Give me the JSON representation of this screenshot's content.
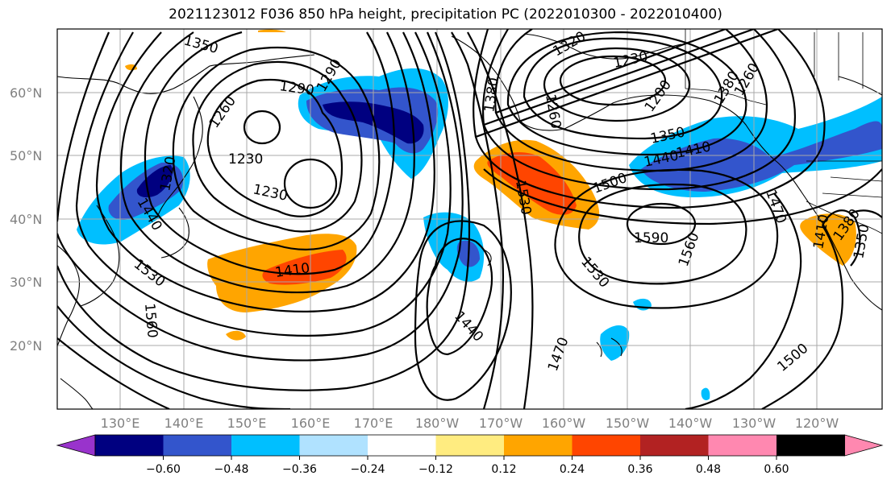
{
  "title": "2021123012 F036 850 hPa height, precipitation PC (2022010300 - 2022010400)",
  "lat_labels": [
    "60°N",
    "50°N",
    "40°N",
    "30°N",
    "20°N"
  ],
  "lon_labels": [
    "130°E",
    "140°E",
    "150°E",
    "160°E",
    "170°E",
    "180°W",
    "170°W",
    "160°W",
    "150°W",
    "140°W",
    "130°W",
    "120°W"
  ],
  "colorbar": {
    "colors": [
      "#9933cc",
      "#000080",
      "#3355cc",
      "#00bfff",
      "#b0e2ff",
      "#ffffff",
      "#ffec80",
      "#ffa500",
      "#ff4500",
      "#b22222",
      "#ff88b0"
    ],
    "tick_labels": [
      "−0.60",
      "−0.48",
      "−0.36",
      "−0.24",
      "−0.12",
      "0.12",
      "0.24",
      "0.36",
      "0.48",
      "0.60"
    ]
  },
  "contour_labels": [
    {
      "id": "c1",
      "text": "1350"
    },
    {
      "id": "c2",
      "text": "1290"
    },
    {
      "id": "c3",
      "text": "1260"
    },
    {
      "id": "c4",
      "text": "1230"
    },
    {
      "id": "c5",
      "text": "1230"
    },
    {
      "id": "c6",
      "text": "1380"
    },
    {
      "id": "c7",
      "text": "1410"
    },
    {
      "id": "c8",
      "text": "1320"
    },
    {
      "id": "c9",
      "text": "1440"
    },
    {
      "id": "c10",
      "text": "1530"
    },
    {
      "id": "c11",
      "text": "1560"
    },
    {
      "id": "c12",
      "text": "1440"
    },
    {
      "id": "c13",
      "text": "1470"
    },
    {
      "id": "c14",
      "text": "1530"
    },
    {
      "id": "c15",
      "text": "1530"
    },
    {
      "id": "c16",
      "text": "1500"
    },
    {
      "id": "c17",
      "text": "1590"
    },
    {
      "id": "c18",
      "text": "1560"
    },
    {
      "id": "c19",
      "text": "1350"
    },
    {
      "id": "c20",
      "text": "1410"
    },
    {
      "id": "c21",
      "text": "1440"
    },
    {
      "id": "c22",
      "text": "1230"
    },
    {
      "id": "c23",
      "text": "1200"
    },
    {
      "id": "c24",
      "text": "1260"
    },
    {
      "id": "c25",
      "text": "1320"
    },
    {
      "id": "c26",
      "text": "1380"
    },
    {
      "id": "c27",
      "text": "1470"
    },
    {
      "id": "c28",
      "text": "1500"
    },
    {
      "id": "c29",
      "text": "1410"
    },
    {
      "id": "c30",
      "text": "1350"
    },
    {
      "id": "c31",
      "text": "1380"
    },
    {
      "id": "c32",
      "text": "1260"
    },
    {
      "id": "c33",
      "text": "1290"
    }
  ]
}
